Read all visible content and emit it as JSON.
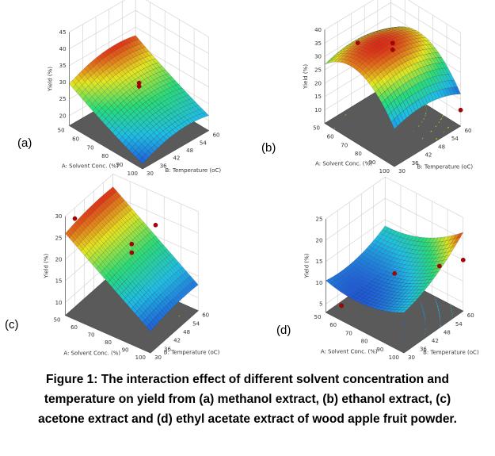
{
  "caption": {
    "line1": "Figure 1: The interaction effect of different solvent concentration and",
    "line2": "temperature on yield from (a) methanol extract, (b) ethanol extract, (c)",
    "line3": "acetone extract and (d) ethyl acetate extract of wood apple fruit powder."
  },
  "chart_data": [
    {
      "id": "a",
      "panel_label": "(a)",
      "type": "surface3d",
      "xlabel": "A: Solvent Conc. (%)",
      "ylabel": "B: Temperature (oC)",
      "zlabel": "Yield (%)",
      "x_ticks": [
        50,
        60,
        70,
        80,
        90,
        100
      ],
      "y_ticks": [
        30,
        36,
        42,
        48,
        54,
        60
      ],
      "z_ticks": [
        20,
        25,
        30,
        35,
        40,
        45
      ],
      "zlim": [
        17,
        45
      ],
      "surface_model": {
        "b0": 27,
        "bA": -5.5,
        "bB": 1.5,
        "bAB": 0,
        "bAA": 0.5,
        "bBB": -2
      },
      "design_points": [
        [
          75,
          45,
          30.5
        ],
        [
          75,
          45,
          29.5
        ]
      ],
      "contour_colors": [
        "#1f8fd0",
        "#22b5d8",
        "#27c9a0",
        "#9ad23a"
      ]
    },
    {
      "id": "b",
      "panel_label": "(b)",
      "type": "surface3d",
      "xlabel": "A: Solvent Conc. (%)",
      "ylabel": "B: Temperature (oC)",
      "zlabel": "Yield (%)",
      "x_ticks": [
        50,
        60,
        70,
        80,
        90,
        100
      ],
      "y_ticks": [
        30,
        36,
        42,
        48,
        54,
        60
      ],
      "z_ticks": [
        10,
        15,
        20,
        25,
        30,
        35,
        40
      ],
      "zlim": [
        5,
        40
      ],
      "surface_model": {
        "b0": 34,
        "bA": -4,
        "bB": -1,
        "bAB": 0,
        "bAA": -9,
        "bBB": -3
      },
      "design_points": [
        [
          75,
          45,
          35.5
        ],
        [
          75,
          45,
          33
        ],
        [
          50,
          45,
          27.5
        ],
        [
          100,
          60,
          11
        ]
      ],
      "contour_colors": [
        "#e8e000",
        "#c8d61a",
        "#8ccc2a"
      ]
    },
    {
      "id": "c",
      "panel_label": "(c)",
      "type": "surface3d",
      "xlabel": "A: Solvent Conc. (%)",
      "ylabel": "B: Temperature (oC)",
      "zlabel": "Yield (%)",
      "x_ticks": [
        50,
        60,
        70,
        80,
        90,
        100
      ],
      "y_ticks": [
        30,
        36,
        42,
        48,
        54,
        60
      ],
      "z_ticks": [
        10,
        15,
        20,
        25,
        30
      ],
      "zlim": [
        7,
        30
      ],
      "surface_model": {
        "b0": 20,
        "bA": -7,
        "bB": 0.5,
        "bAB": 0,
        "bAA": 0,
        "bBB": -0.5
      },
      "design_points": [
        [
          50,
          36,
          27.5
        ],
        [
          75,
          45,
          23
        ],
        [
          75,
          45,
          21
        ],
        [
          75,
          60,
          22.5
        ]
      ],
      "contour_colors": [
        "#e8a000",
        "#d8c000",
        "#9cd02a",
        "#3cc888",
        "#2ab0d8"
      ]
    },
    {
      "id": "d",
      "panel_label": "(d)",
      "type": "surface3d",
      "xlabel": "A: Solvent Conc. (%)",
      "ylabel": "B: Temperature (oC)",
      "zlabel": "Yield (%)",
      "x_ticks": [
        50,
        60,
        70,
        80,
        90,
        100
      ],
      "y_ticks": [
        30,
        36,
        42,
        48,
        54,
        60
      ],
      "z_ticks": [
        5,
        10,
        15,
        20,
        25
      ],
      "zlim": [
        3,
        25
      ],
      "surface_model": {
        "b0": 11,
        "bA": 2.5,
        "bB": 3,
        "bAB": 1.5,
        "bAA": 2,
        "bBB": 1.5
      },
      "design_points": [
        [
          75,
          45,
          12
        ],
        [
          100,
          60,
          15
        ],
        [
          100,
          48,
          17.5
        ],
        [
          60,
          30,
          6.5
        ]
      ],
      "contour_colors": [
        "#2060d0",
        "#1f8fd0",
        "#22b5d8",
        "#27c9a0"
      ]
    }
  ]
}
